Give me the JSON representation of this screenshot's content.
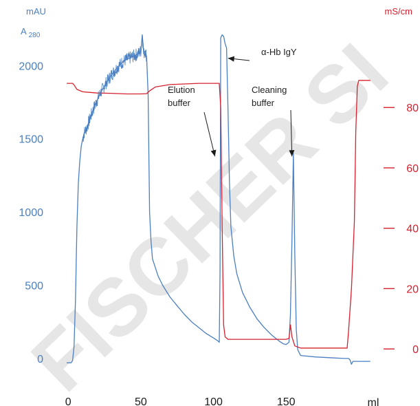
{
  "chart_data": {
    "type": "line",
    "watermark": "FISCHER SI",
    "x_axis": {
      "unit": "ml",
      "ticks": [
        0,
        50,
        100,
        150
      ],
      "range": [
        -2,
        210
      ]
    },
    "y_left": {
      "unit": "mAU",
      "name_main": "A",
      "name_sub": "280",
      "ticks": [
        0,
        500,
        1000,
        1500,
        2000
      ],
      "range": [
        -90,
        2260
      ],
      "color": "#4a7fc1"
    },
    "y_right": {
      "unit": "mS/cm",
      "ticks": [
        0,
        20,
        40,
        60,
        80
      ],
      "range": [
        -7.5,
        106.5
      ],
      "color": "#d6202e"
    },
    "grid": false,
    "series": [
      {
        "key": "a280",
        "axis": "left",
        "color": "#4a7fc1",
        "points": [
          [
            -1,
            -30
          ],
          [
            2,
            -30
          ],
          [
            3,
            -15
          ],
          [
            4,
            80
          ],
          [
            5,
            400
          ],
          [
            6,
            900
          ],
          [
            7,
            1200
          ],
          [
            8,
            1350
          ],
          [
            9,
            1450
          ],
          [
            10,
            1500
          ],
          [
            11,
            1540
          ],
          [
            13,
            1580
          ],
          [
            15,
            1640
          ],
          [
            18,
            1720
          ],
          [
            22,
            1810
          ],
          [
            26,
            1880
          ],
          [
            30,
            1940
          ],
          [
            34,
            1990
          ],
          [
            38,
            2030
          ],
          [
            42,
            2050
          ],
          [
            46,
            2070
          ],
          [
            48,
            2080
          ],
          [
            50,
            2100
          ],
          [
            51,
            2210
          ],
          [
            52,
            2080
          ],
          [
            53,
            2100
          ],
          [
            54,
            2060
          ],
          [
            55,
            1800
          ],
          [
            56,
            1000
          ],
          [
            57,
            800
          ],
          [
            58,
            680
          ],
          [
            60,
            620
          ],
          [
            62,
            560
          ],
          [
            65,
            500
          ],
          [
            70,
            420
          ],
          [
            75,
            360
          ],
          [
            80,
            300
          ],
          [
            85,
            250
          ],
          [
            90,
            210
          ],
          [
            95,
            170
          ],
          [
            100,
            140
          ],
          [
            103,
            120
          ],
          [
            104,
            110
          ],
          [
            104.5,
            600
          ],
          [
            105,
            2190
          ],
          [
            106,
            2210
          ],
          [
            107,
            2200
          ],
          [
            108,
            2150
          ],
          [
            109,
            2120
          ],
          [
            110,
            1700
          ],
          [
            111,
            1200
          ],
          [
            112,
            900
          ],
          [
            114,
            700
          ],
          [
            116,
            580
          ],
          [
            120,
            450
          ],
          [
            125,
            350
          ],
          [
            130,
            270
          ],
          [
            135,
            210
          ],
          [
            140,
            160
          ],
          [
            145,
            120
          ],
          [
            148,
            100
          ],
          [
            150,
            95
          ],
          [
            152,
            110
          ],
          [
            153,
            300
          ],
          [
            154,
            800
          ],
          [
            155,
            1400
          ],
          [
            156,
            700
          ],
          [
            157,
            200
          ],
          [
            158,
            60
          ],
          [
            160,
            20
          ],
          [
            170,
            10
          ],
          [
            180,
            5
          ],
          [
            190,
            0
          ],
          [
            193,
            0
          ],
          [
            194,
            -10
          ],
          [
            195,
            -40
          ],
          [
            196,
            -20
          ],
          [
            198,
            -20
          ],
          [
            200,
            -20
          ],
          [
            202,
            -20
          ],
          [
            208,
            -20
          ]
        ]
      },
      {
        "key": "conductivity",
        "axis": "right",
        "color": "#d6202e",
        "points": [
          [
            -1,
            88
          ],
          [
            3,
            88
          ],
          [
            4,
            87.5
          ],
          [
            6,
            86
          ],
          [
            10,
            85.2
          ],
          [
            20,
            84.8
          ],
          [
            30,
            84.7
          ],
          [
            40,
            84.5
          ],
          [
            50,
            84.5
          ],
          [
            54,
            84.6
          ],
          [
            56,
            85.5
          ],
          [
            60,
            86.8
          ],
          [
            70,
            87.6
          ],
          [
            80,
            87.8
          ],
          [
            90,
            88
          ],
          [
            104,
            88
          ],
          [
            105,
            80
          ],
          [
            106,
            40
          ],
          [
            107,
            8
          ],
          [
            108,
            4
          ],
          [
            110,
            3.2
          ],
          [
            130,
            3.2
          ],
          [
            150,
            3.2
          ],
          [
            152,
            3.5
          ],
          [
            153,
            8
          ],
          [
            154,
            4
          ],
          [
            156,
            1
          ],
          [
            160,
            0.3
          ],
          [
            190,
            0.3
          ],
          [
            192,
            0.3
          ],
          [
            193,
            6
          ],
          [
            195,
            20
          ],
          [
            197,
            42
          ],
          [
            198,
            72
          ],
          [
            199,
            87
          ],
          [
            200,
            89
          ],
          [
            202,
            89
          ],
          [
            208,
            89
          ]
        ]
      }
    ],
    "annotations": [
      {
        "lines": [
          "α-Hb IgY"
        ],
        "target": [
          110,
          2050
        ]
      },
      {
        "lines": [
          "Elution",
          "buffer"
        ],
        "target": [
          101,
          1380
        ]
      },
      {
        "lines": [
          "Cleaning",
          "buffer"
        ],
        "target": [
          154,
          1380
        ]
      }
    ]
  }
}
